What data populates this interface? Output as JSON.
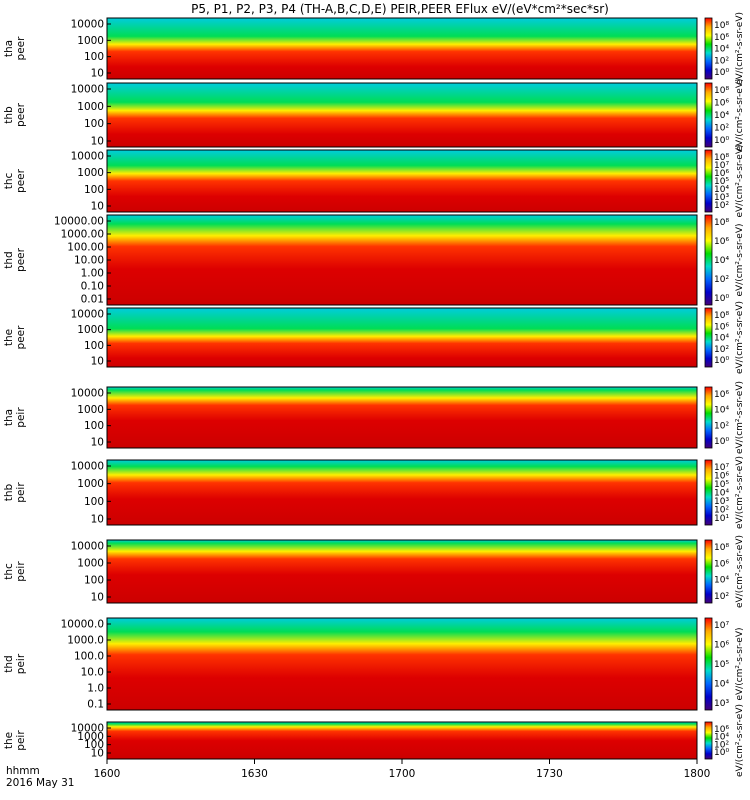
{
  "title": "P5, P1, P2, P3, P4 (TH-A,B,C,D,E) PEIR,PEER EFlux eV/(eV*cm²*sec*sr)",
  "footer": {
    "time_label": "hhmm",
    "date_label": "2016 May 31"
  },
  "chart_data": {
    "type": "heatmap",
    "x_axis": {
      "tick_labels": [
        "1600",
        "1630",
        "1700",
        "1730",
        "1800"
      ],
      "range": [
        "16:00",
        "18:00"
      ]
    },
    "colorbar_label": "eV/(eV*cm²*sec*sr)",
    "colormap": [
      "#ff0000",
      "#ffaa00",
      "#ffff00",
      "#00dd00",
      "#00ddcc",
      "#0066ff",
      "#0000cc",
      "#440077"
    ],
    "panels": [
      {
        "probe": "tha",
        "species": "peer",
        "y_label": "tha peer",
        "y_ticks": [
          "10000",
          "1000",
          "100",
          "10"
        ],
        "cb_ticks": [
          "10⁸",
          "10⁶",
          "10⁴",
          "10²",
          "10⁰"
        ],
        "cb_side_label": "eV/(cm²-s-sr-eV)"
      },
      {
        "probe": "thb",
        "species": "peer",
        "y_label": "thb peer",
        "y_ticks": [
          "10000",
          "1000",
          "100",
          "10"
        ],
        "cb_ticks": [
          "10⁸",
          "10⁶",
          "10⁴",
          "10²",
          "10⁰"
        ],
        "cb_side_label": "eV/(cm²-s-sr-eV)"
      },
      {
        "probe": "thc",
        "species": "peer",
        "y_label": "thc peer",
        "y_ticks": [
          "10000",
          "1000",
          "100",
          "10"
        ],
        "cb_ticks": [
          "10⁸",
          "10⁷",
          "10⁶",
          "10⁵",
          "10⁴",
          "10³",
          "10²"
        ],
        "cb_side_label": "eV/(cm²-s-sr-eV)"
      },
      {
        "probe": "thd",
        "species": "peer",
        "y_label": "thd peer",
        "y_ticks": [
          "10000.00",
          "1000.00",
          "100.00",
          "10.00",
          "1.00",
          "0.10",
          "0.01"
        ],
        "cb_ticks": [
          "10⁸",
          "10⁶",
          "10⁴",
          "10²",
          "10⁰"
        ],
        "cb_side_label": "eV/(cm²-s-sr-eV)"
      },
      {
        "probe": "the",
        "species": "peer",
        "y_label": "the peer",
        "y_ticks": [
          "10000",
          "1000",
          "100",
          "10"
        ],
        "cb_ticks": [
          "10⁸",
          "10⁶",
          "10⁴",
          "10²",
          "10⁰"
        ],
        "cb_side_label": "eV/(cm²-s-sr-eV)"
      },
      {
        "probe": "tha",
        "species": "peir",
        "y_label": "tha peir",
        "y_ticks": [
          "10000",
          "1000",
          "100",
          "10"
        ],
        "cb_ticks": [
          "10⁶",
          "10⁴",
          "10²",
          "10⁰"
        ],
        "cb_side_label": "eV/(cm²-s-sr-eV)"
      },
      {
        "probe": "thb",
        "species": "peir",
        "y_label": "thb peir",
        "y_ticks": [
          "10000",
          "1000",
          "100",
          "10"
        ],
        "cb_ticks": [
          "10⁷",
          "10⁶",
          "10⁵",
          "10⁴",
          "10³",
          "10²",
          "10¹"
        ],
        "cb_side_label": "eV/(cm²-s-sr-eV)"
      },
      {
        "probe": "thc",
        "species": "peir",
        "y_label": "thc peir",
        "y_ticks": [
          "10000",
          "1000",
          "100",
          "10"
        ],
        "cb_ticks": [
          "10⁸",
          "10⁶",
          "10⁴",
          "10²"
        ],
        "cb_side_label": "eV/(cm²-s-sr-eV)"
      },
      {
        "probe": "thd",
        "species": "peir",
        "y_label": "thd peir",
        "y_ticks": [
          "10000.0",
          "1000.0",
          "100.0",
          "10.0",
          "1.0",
          "0.1"
        ],
        "cb_ticks": [
          "10⁷",
          "10⁶",
          "10⁵",
          "10⁴",
          "10³"
        ],
        "cb_side_label": "eV/(cm²-s-sr-eV)"
      },
      {
        "probe": "the",
        "species": "peir",
        "y_label": "the peir",
        "y_ticks": [
          "10000",
          "1000",
          "100",
          "10"
        ],
        "cb_ticks": [
          "10⁶",
          "10⁴",
          "10²",
          "10⁰"
        ],
        "cb_side_label": "eV/(cm²-s-sr-eV)"
      }
    ]
  }
}
